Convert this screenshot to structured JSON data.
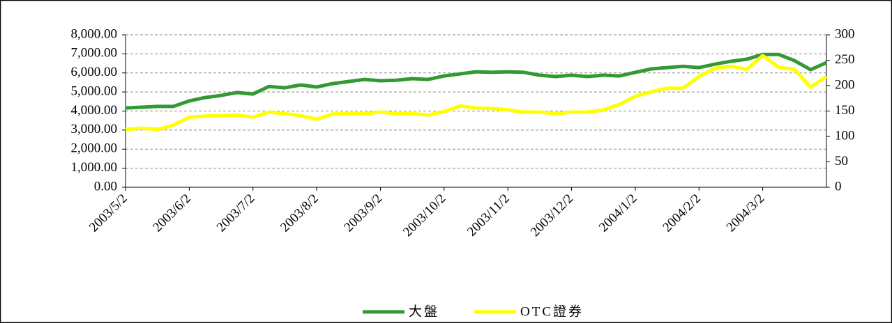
{
  "chart_data": {
    "type": "line",
    "categories": [
      "2003/5/2",
      null,
      null,
      null,
      "2003/6/2",
      null,
      null,
      null,
      "2003/7/2",
      null,
      null,
      null,
      "2003/8/2",
      null,
      null,
      null,
      "2003/9/2",
      null,
      null,
      null,
      "2003/10/2",
      null,
      null,
      null,
      "2003/11/2",
      null,
      null,
      null,
      "2003/12/2",
      null,
      null,
      null,
      "2004/1/2",
      null,
      null,
      null,
      "2004/2/2",
      null,
      null,
      null,
      "2004/3/2",
      null,
      null,
      null,
      null
    ],
    "series": [
      {
        "name": "大盤",
        "color": "#339933",
        "values": [
          4160,
          4200,
          4240,
          4240,
          4530,
          4710,
          4820,
          4970,
          4890,
          5290,
          5220,
          5370,
          5260,
          5440,
          5550,
          5660,
          5590,
          5620,
          5700,
          5660,
          5840,
          5950,
          6060,
          6030,
          6060,
          6030,
          5880,
          5810,
          5880,
          5810,
          5880,
          5840,
          6030,
          6210,
          6280,
          6350,
          6280,
          6460,
          6610,
          6720,
          6970,
          6970,
          6640,
          6170,
          6540
        ]
      },
      {
        "name": "OTC證券",
        "color": "#ffff00",
        "axis": "y2",
        "values": [
          114,
          116,
          114,
          122,
          138,
          140,
          141,
          142,
          138,
          148,
          145,
          141,
          134,
          144,
          145,
          145,
          148,
          145,
          145,
          142,
          149,
          160,
          156,
          155,
          152,
          148,
          148,
          145,
          148,
          148,
          152,
          163,
          179,
          188,
          195,
          195,
          218,
          234,
          238,
          232,
          259,
          236,
          232,
          197,
          218
        ]
      }
    ],
    "ylim": [
      0,
      8000
    ],
    "yticks": [
      {
        "value": 0,
        "label": "0.00"
      },
      {
        "value": 1000,
        "label": "1,000.00"
      },
      {
        "value": 2000,
        "label": "2,000.00"
      },
      {
        "value": 3000,
        "label": "3,000.00"
      },
      {
        "value": 4000,
        "label": "4,000.00"
      },
      {
        "value": 5000,
        "label": "5,000.00"
      },
      {
        "value": 6000,
        "label": "6,000.00"
      },
      {
        "value": 7000,
        "label": "7,000.00"
      },
      {
        "value": 8000,
        "label": "8,000.00"
      }
    ],
    "y2lim": [
      0,
      300
    ],
    "y2ticks": [
      0,
      50,
      100,
      150,
      200,
      250,
      300
    ],
    "grid": true,
    "legend": "bottom"
  }
}
